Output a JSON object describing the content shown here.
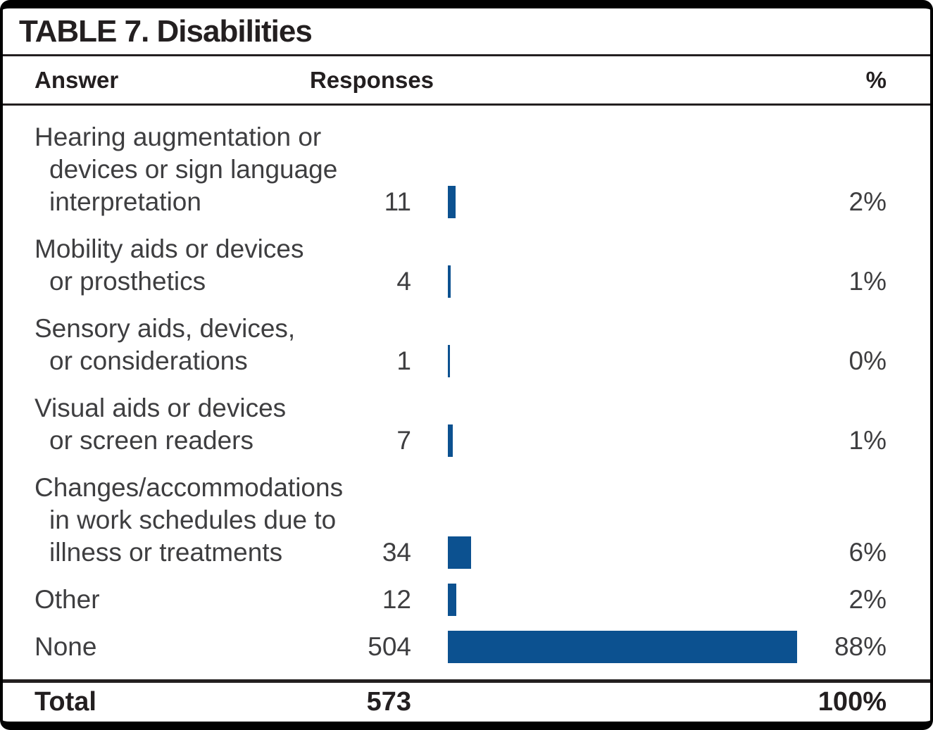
{
  "table": {
    "title": "TABLE 7. Disabilities",
    "columns": {
      "answer": "Answer",
      "responses": "Responses",
      "percent": "%"
    },
    "rows": [
      {
        "label": "Hearing augmentation or devices or sign language interpretation",
        "lines": [
          "Hearing augmentation or",
          "devices or sign language",
          "interpretation"
        ],
        "responses": 11,
        "percent": "2%"
      },
      {
        "label": "Mobility aids or devices or prosthetics",
        "lines": [
          "Mobility aids or devices",
          "or prosthetics"
        ],
        "responses": 4,
        "percent": "1%"
      },
      {
        "label": "Sensory aids, devices, or considerations",
        "lines": [
          "Sensory aids, devices,",
          "or considerations"
        ],
        "responses": 1,
        "percent": "0%"
      },
      {
        "label": "Visual aids or devices or screen readers",
        "lines": [
          "Visual aids or devices",
          "or screen readers"
        ],
        "responses": 7,
        "percent": "1%"
      },
      {
        "label": "Changes/accommodations in work schedules due to illness or treatments",
        "lines": [
          "Changes/accommodations",
          "in work schedules due to",
          "illness or treatments"
        ],
        "responses": 34,
        "percent": "6%"
      },
      {
        "label": "Other",
        "lines": [
          "Other"
        ],
        "responses": 12,
        "percent": "2%"
      },
      {
        "label": "None",
        "lines": [
          "None"
        ],
        "responses": 504,
        "percent": "88%"
      }
    ],
    "total": {
      "label": "Total",
      "responses": "573",
      "percent": "100%"
    }
  },
  "colors": {
    "bar_blue": "#0C5190",
    "heading_text": "#231F20",
    "body_text": "#3E3E40"
  },
  "chart_data": {
    "type": "bar",
    "orientation": "horizontal",
    "title": "TABLE 7. Disabilities",
    "categories": [
      "Hearing augmentation or devices or sign language interpretation",
      "Mobility aids or devices or prosthetics",
      "Sensory aids, devices, or considerations",
      "Visual aids or devices or screen readers",
      "Changes/accommodations in work schedules due to illness or treatments",
      "Other",
      "None"
    ],
    "series": [
      {
        "name": "Responses",
        "values": [
          11,
          4,
          1,
          7,
          34,
          12,
          504
        ]
      }
    ],
    "percent_labels": [
      "2%",
      "1%",
      "0%",
      "1%",
      "6%",
      "2%",
      "88%"
    ],
    "total_responses": 573,
    "total_percent": "100%",
    "xlim": [
      0,
      512
    ],
    "legend": "none",
    "grid": "off",
    "bar_color": "#0C5190"
  }
}
